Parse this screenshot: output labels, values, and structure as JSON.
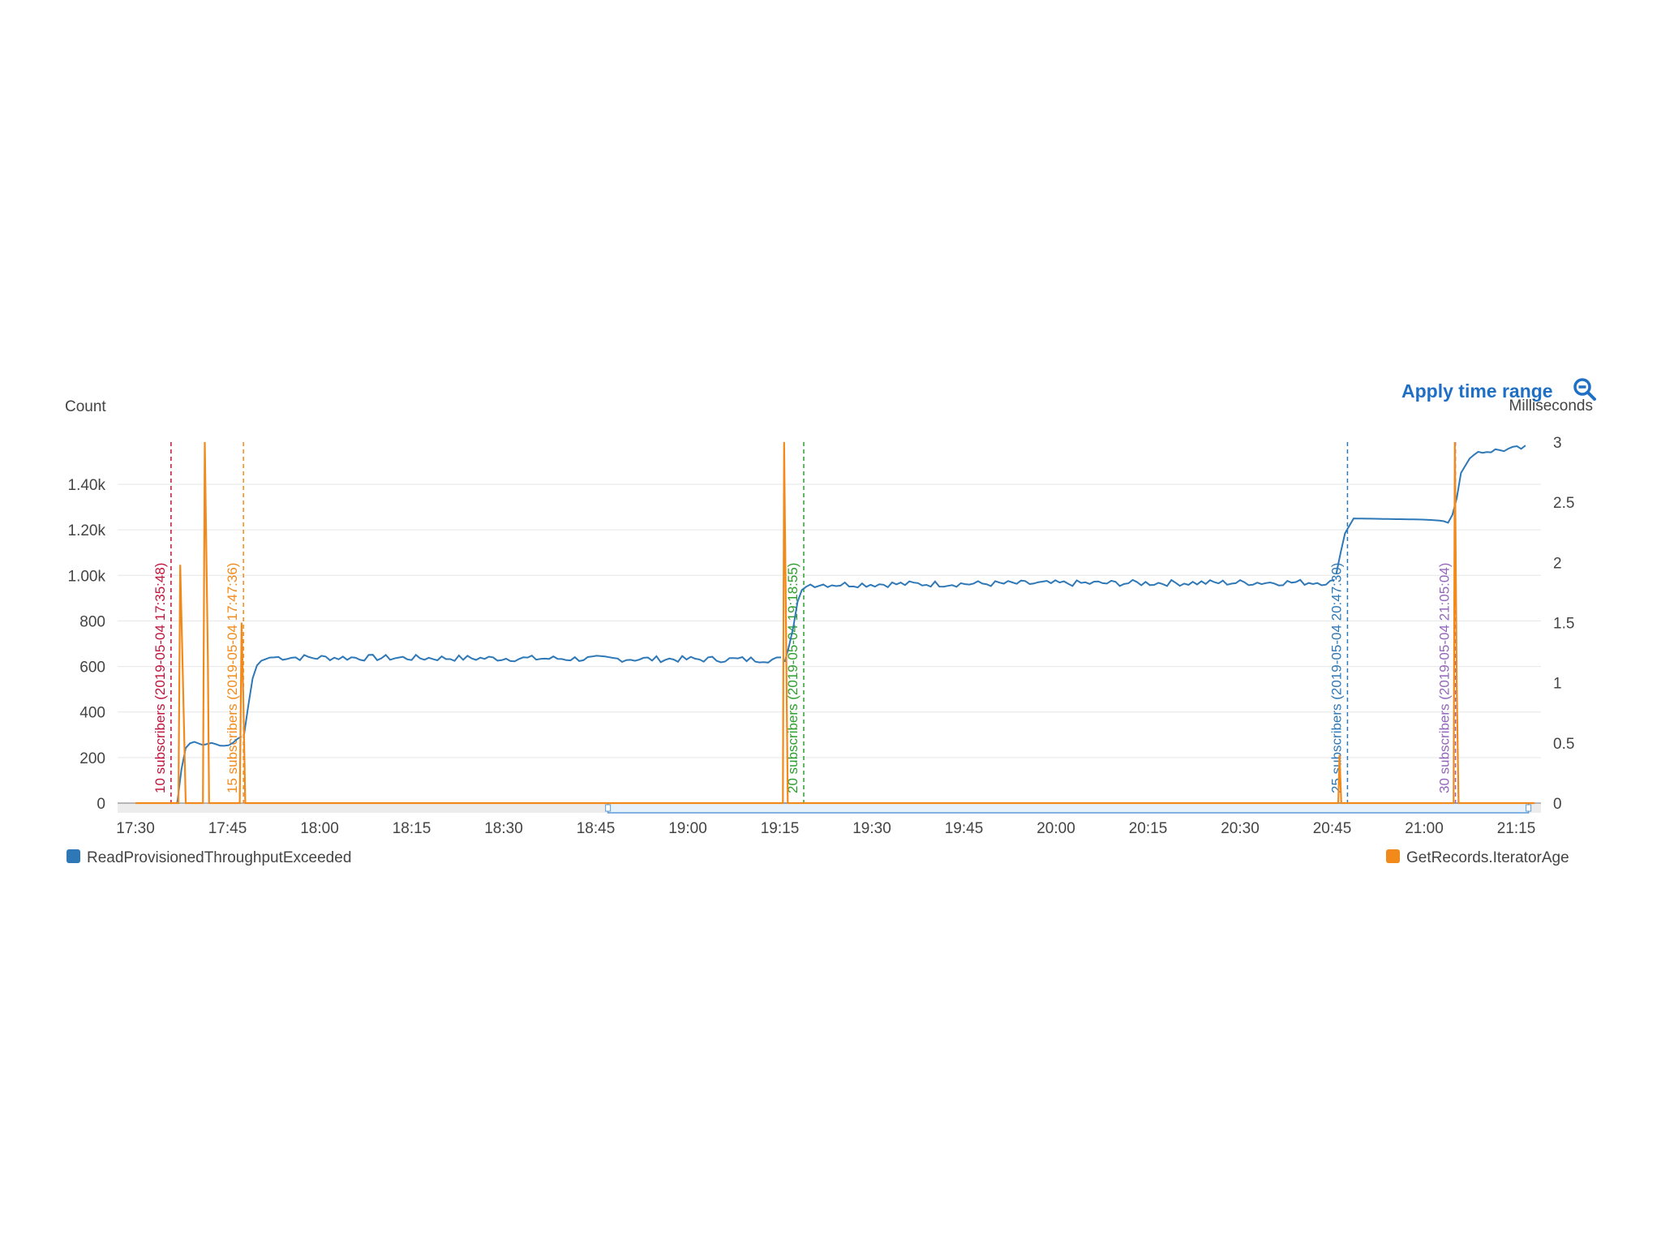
{
  "toolbar": {
    "apply_label": "Apply time range",
    "zoom_icon": "zoom-out-icon"
  },
  "colors": {
    "read_series": "#2e78b7",
    "iterator_series": "#f28a1b",
    "grid": "#e6e6e6",
    "axis": "#777777",
    "annot_10": "#c0143c",
    "annot_15": "#f28a1b",
    "annot_20": "#2ca02c",
    "annot_25": "#2e78b7",
    "annot_30": "#9467bd",
    "range_fill": "#e7f1fb",
    "range_stroke": "#5b9bd5",
    "scrub_bg": "#ececec"
  },
  "chart_data": {
    "type": "line",
    "left_axis": {
      "label": "Count",
      "ticks": [
        "0",
        "200",
        "400",
        "600",
        "800",
        "1.00k",
        "1.20k",
        "1.40k"
      ],
      "tick_values": [
        0,
        200,
        400,
        600,
        800,
        1000,
        1200,
        1400
      ],
      "ylim": [
        0,
        1600
      ]
    },
    "right_axis": {
      "label": "Milliseconds",
      "ticks": [
        "0",
        "0.5",
        "1",
        "1.5",
        "2",
        "2.5",
        "3"
      ],
      "tick_values": [
        0,
        0.5,
        1,
        1.5,
        2,
        2.5,
        3
      ],
      "ylim": [
        0,
        3
      ]
    },
    "x_axis": {
      "ticks": [
        "17:30",
        "17:45",
        "18:00",
        "18:15",
        "18:30",
        "18:45",
        "19:00",
        "19:15",
        "19:30",
        "19:45",
        "20:00",
        "20:15",
        "20:30",
        "20:45",
        "21:00",
        "21:15"
      ],
      "tick_minutes": [
        1050,
        1065,
        1080,
        1095,
        1110,
        1125,
        1140,
        1155,
        1170,
        1185,
        1200,
        1215,
        1230,
        1245,
        1260,
        1275
      ],
      "xlim_minutes": [
        1050,
        1278
      ]
    },
    "series": [
      {
        "name": "ReadProvisionedThroughputExceeded",
        "axis": "left",
        "segments": [
          {
            "start": 1056.8,
            "end": 1067.7,
            "base": 0,
            "noise": 0,
            "anchors": [
              [
                1056.8,
                0
              ],
              [
                1057.5,
                150
              ],
              [
                1058.3,
                255
              ],
              [
                1059.5,
                270
              ],
              [
                1061,
                255
              ],
              [
                1062.5,
                265
              ],
              [
                1064,
                250
              ],
              [
                1065.5,
                255
              ],
              [
                1066.5,
                280
              ],
              [
                1067.7,
                300
              ]
            ]
          },
          {
            "start": 1067.7,
            "end": 1155.8,
            "base": 635,
            "noise": 14,
            "anchors": [
              [
                1067.7,
                300
              ],
              [
                1069,
                540
              ],
              [
                1070,
                620
              ],
              [
                1072,
                640
              ],
              [
                1155.8,
                630
              ]
            ]
          },
          {
            "start": 1155.8,
            "end": 1245.7,
            "base": 950,
            "noise": 14,
            "anchors": [
              [
                1155.8,
                620
              ],
              [
                1157,
                740
              ],
              [
                1158,
                900
              ],
              [
                1159,
                960
              ],
              [
                1245.7,
                970
              ]
            ]
          },
          {
            "start": 1245.7,
            "end": 1276.5,
            "base": 1240,
            "noise": 12,
            "anchors": [
              [
                1245.7,
                1010
              ],
              [
                1247,
                1180
              ],
              [
                1248.5,
                1250
              ],
              [
                1260,
                1245
              ],
              [
                1263,
                1240
              ],
              [
                1264,
                1230
              ],
              [
                1265,
                1290
              ],
              [
                1266,
                1450
              ],
              [
                1268,
                1540
              ],
              [
                1276.5,
                1560
              ]
            ]
          }
        ]
      },
      {
        "name": "GetRecords.IteratorAge",
        "axis": "right",
        "points": [
          [
            1050,
            0
          ],
          [
            1057,
            0
          ],
          [
            1057.3,
            1.98
          ],
          [
            1057.7,
            1.1
          ],
          [
            1058.2,
            0
          ],
          [
            1061,
            0
          ],
          [
            1061.3,
            3
          ],
          [
            1061.8,
            1.2
          ],
          [
            1062,
            0
          ],
          [
            1067,
            0
          ],
          [
            1067.3,
            1.5
          ],
          [
            1067.6,
            0.8
          ],
          [
            1067.9,
            0
          ],
          [
            1155.5,
            0
          ],
          [
            1155.7,
            3
          ],
          [
            1156,
            1.5
          ],
          [
            1156.3,
            0
          ],
          [
            1246,
            0
          ],
          [
            1246.2,
            0.4
          ],
          [
            1246.5,
            0
          ],
          [
            1264.8,
            0
          ],
          [
            1265,
            3
          ],
          [
            1265.3,
            1
          ],
          [
            1265.6,
            0
          ],
          [
            1278,
            0
          ]
        ]
      }
    ],
    "annotations": [
      {
        "label": "10 subscribers (2019-05-04 17:35:48)",
        "minute": 1055.8,
        "color_key": "annot_10"
      },
      {
        "label": "15 subscribers (2019-05-04 17:47:36)",
        "minute": 1067.6,
        "color_key": "annot_15"
      },
      {
        "label": "20 subscribers (2019-05-04 19:18:55)",
        "minute": 1158.9,
        "color_key": "annot_20"
      },
      {
        "label": "25 subscribers (2019-05-04 20:47:30)",
        "minute": 1247.5,
        "color_key": "annot_25"
      },
      {
        "label": "30 subscribers (2019-05-04 21:05:04)",
        "minute": 1265.1,
        "color_key": "annot_30"
      }
    ],
    "selected_range_minutes": [
      1127,
      1277
    ],
    "legend": [
      {
        "name": "ReadProvisionedThroughputExceeded",
        "color_key": "read_series",
        "position": "bottom-left"
      },
      {
        "name": "GetRecords.IteratorAge",
        "color_key": "iterator_series",
        "position": "bottom-right"
      }
    ]
  }
}
